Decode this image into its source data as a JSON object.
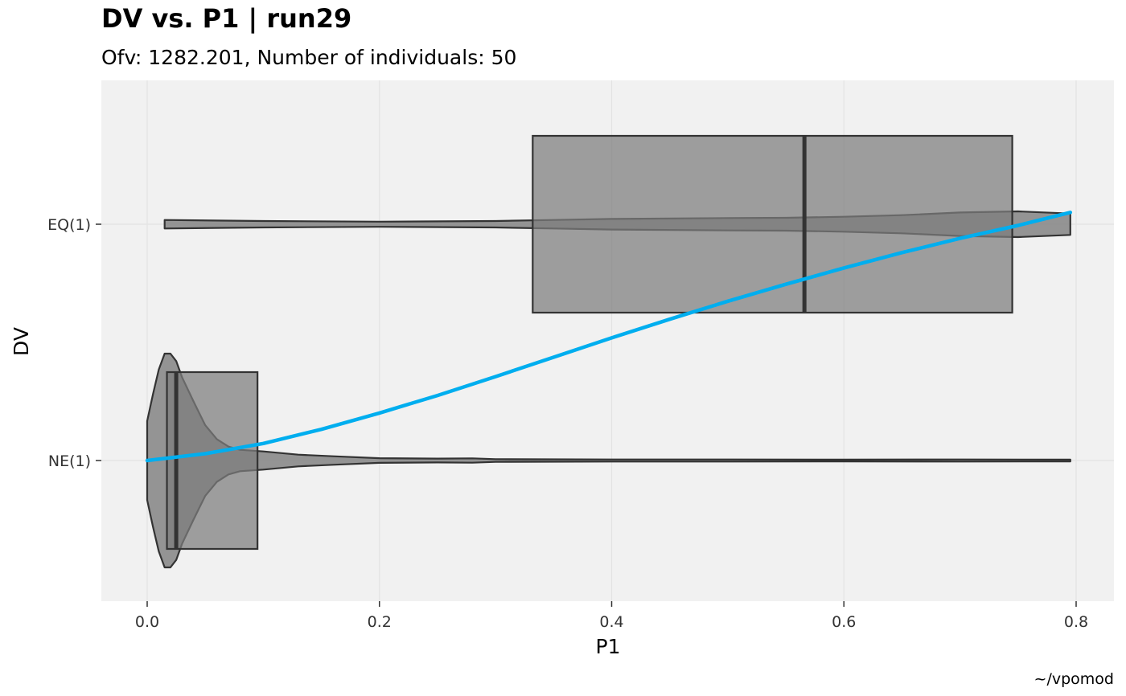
{
  "chart_data": {
    "type": "boxplot",
    "title": "DV vs. P1 | run29",
    "subtitle": "Ofv: 1282.201, Number of individuals: 50",
    "xlabel": "P1",
    "ylabel": "DV",
    "caption": "~/vpomod",
    "xlim": [
      -0.04,
      0.84
    ],
    "xticks": [
      0.0,
      0.2,
      0.4,
      0.6,
      0.8
    ],
    "xtick_labels": [
      "0.0",
      "0.2",
      "0.4",
      "0.6",
      "0.8"
    ],
    "categories": [
      "NE(1)",
      "EQ(1)"
    ],
    "grid": true,
    "boxes": [
      {
        "category": "NE(1)",
        "q1": 0.017,
        "median": 0.025,
        "q3": 0.095
      },
      {
        "category": "EQ(1)",
        "q1": 0.332,
        "median": 0.566,
        "q3": 0.745
      }
    ],
    "violins": [
      {
        "category": "NE(1)",
        "profile": [
          [
            0.0,
            0.37
          ],
          [
            0.005,
            0.62
          ],
          [
            0.01,
            0.85
          ],
          [
            0.015,
            1.0
          ],
          [
            0.02,
            1.0
          ],
          [
            0.025,
            0.93
          ],
          [
            0.03,
            0.78
          ],
          [
            0.04,
            0.55
          ],
          [
            0.05,
            0.33
          ],
          [
            0.06,
            0.2
          ],
          [
            0.07,
            0.13
          ],
          [
            0.08,
            0.1
          ],
          [
            0.1,
            0.085
          ],
          [
            0.13,
            0.055
          ],
          [
            0.16,
            0.04
          ],
          [
            0.2,
            0.022
          ],
          [
            0.25,
            0.018
          ],
          [
            0.28,
            0.02
          ],
          [
            0.3,
            0.013
          ],
          [
            0.4,
            0.01
          ],
          [
            0.5,
            0.01
          ],
          [
            0.6,
            0.008
          ],
          [
            0.7,
            0.01
          ],
          [
            0.795,
            0.008
          ]
        ]
      },
      {
        "category": "EQ(1)",
        "profile": [
          [
            0.015,
            0.04
          ],
          [
            0.1,
            0.03
          ],
          [
            0.2,
            0.024
          ],
          [
            0.3,
            0.03
          ],
          [
            0.35,
            0.04
          ],
          [
            0.4,
            0.05
          ],
          [
            0.5,
            0.058
          ],
          [
            0.55,
            0.06
          ],
          [
            0.6,
            0.07
          ],
          [
            0.65,
            0.085
          ],
          [
            0.7,
            0.11
          ],
          [
            0.75,
            0.12
          ],
          [
            0.795,
            0.1
          ]
        ]
      }
    ],
    "smooth_line": {
      "color": "#00aeef",
      "points": [
        [
          0.0,
          0.0
        ],
        [
          0.05,
          0.029
        ],
        [
          0.1,
          0.072
        ],
        [
          0.15,
          0.132
        ],
        [
          0.2,
          0.201
        ],
        [
          0.25,
          0.275
        ],
        [
          0.3,
          0.355
        ],
        [
          0.35,
          0.437
        ],
        [
          0.4,
          0.519
        ],
        [
          0.45,
          0.598
        ],
        [
          0.5,
          0.674
        ],
        [
          0.55,
          0.746
        ],
        [
          0.6,
          0.815
        ],
        [
          0.65,
          0.88
        ],
        [
          0.7,
          0.94
        ],
        [
          0.75,
          0.995
        ],
        [
          0.795,
          1.05
        ]
      ]
    },
    "colors": {
      "panel_bg": "#f1f1f1",
      "grid": "#e3e3e3",
      "box_fill": "#7d7d7d",
      "outline": "#333333",
      "smooth": "#00aeef"
    }
  }
}
